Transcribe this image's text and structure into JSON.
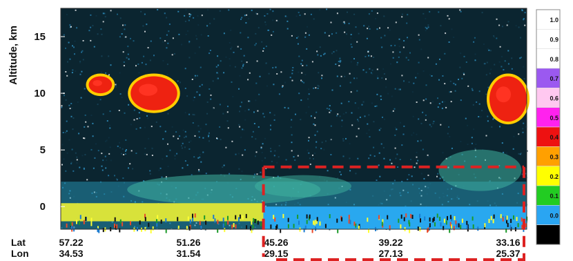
{
  "chart_data": {
    "type": "heatmap",
    "ylabel": "Altitude, km",
    "ylim": [
      -2,
      17.5
    ],
    "yticks": [
      {
        "value": 0,
        "label": "0"
      },
      {
        "value": 5,
        "label": "5"
      },
      {
        "value": 10,
        "label": "10"
      },
      {
        "value": 15,
        "label": "15"
      }
    ],
    "xaxis_rows": [
      {
        "name": "Lat",
        "labels": [
          "57.22",
          "51.26",
          "45.26",
          "39.22",
          "33.16"
        ]
      },
      {
        "name": "Lon",
        "labels": [
          "34.53",
          "31.54",
          "29.15",
          "27.13",
          "25.37"
        ]
      }
    ],
    "colorbar": {
      "labels": [
        "1.0",
        "0.9",
        "0.8",
        "0.7",
        "0.6",
        "0.5",
        "0.4",
        "0.3",
        "0.2",
        "0.1",
        "0.0"
      ],
      "colors": [
        "#ffffff",
        "#ffffff",
        "#ffffff",
        "#9b59f0",
        "#ffc8f0",
        "#ff22ee",
        "#ee1111",
        "#ffa000",
        "#ffff00",
        "#22cc22",
        "#2aa5f2",
        "#000000"
      ]
    },
    "features": [
      {
        "kind": "cloud",
        "x_frac": [
          0.15,
          0.25
        ],
        "alt": [
          8.5,
          11.5
        ]
      },
      {
        "kind": "cloud",
        "x_frac": [
          0.06,
          0.11
        ],
        "alt": [
          10.0,
          11.5
        ]
      },
      {
        "kind": "cloud",
        "x_frac": [
          0.92,
          1.0
        ],
        "alt": [
          7.5,
          11.5
        ]
      },
      {
        "kind": "aerosol",
        "x_frac": [
          0.0,
          1.0
        ],
        "alt": [
          -2,
          4
        ]
      }
    ],
    "highlight_box": {
      "x_frac": [
        0.435,
        1.0
      ],
      "alt": [
        -2,
        3.5
      ],
      "color": "#dd2222"
    }
  }
}
